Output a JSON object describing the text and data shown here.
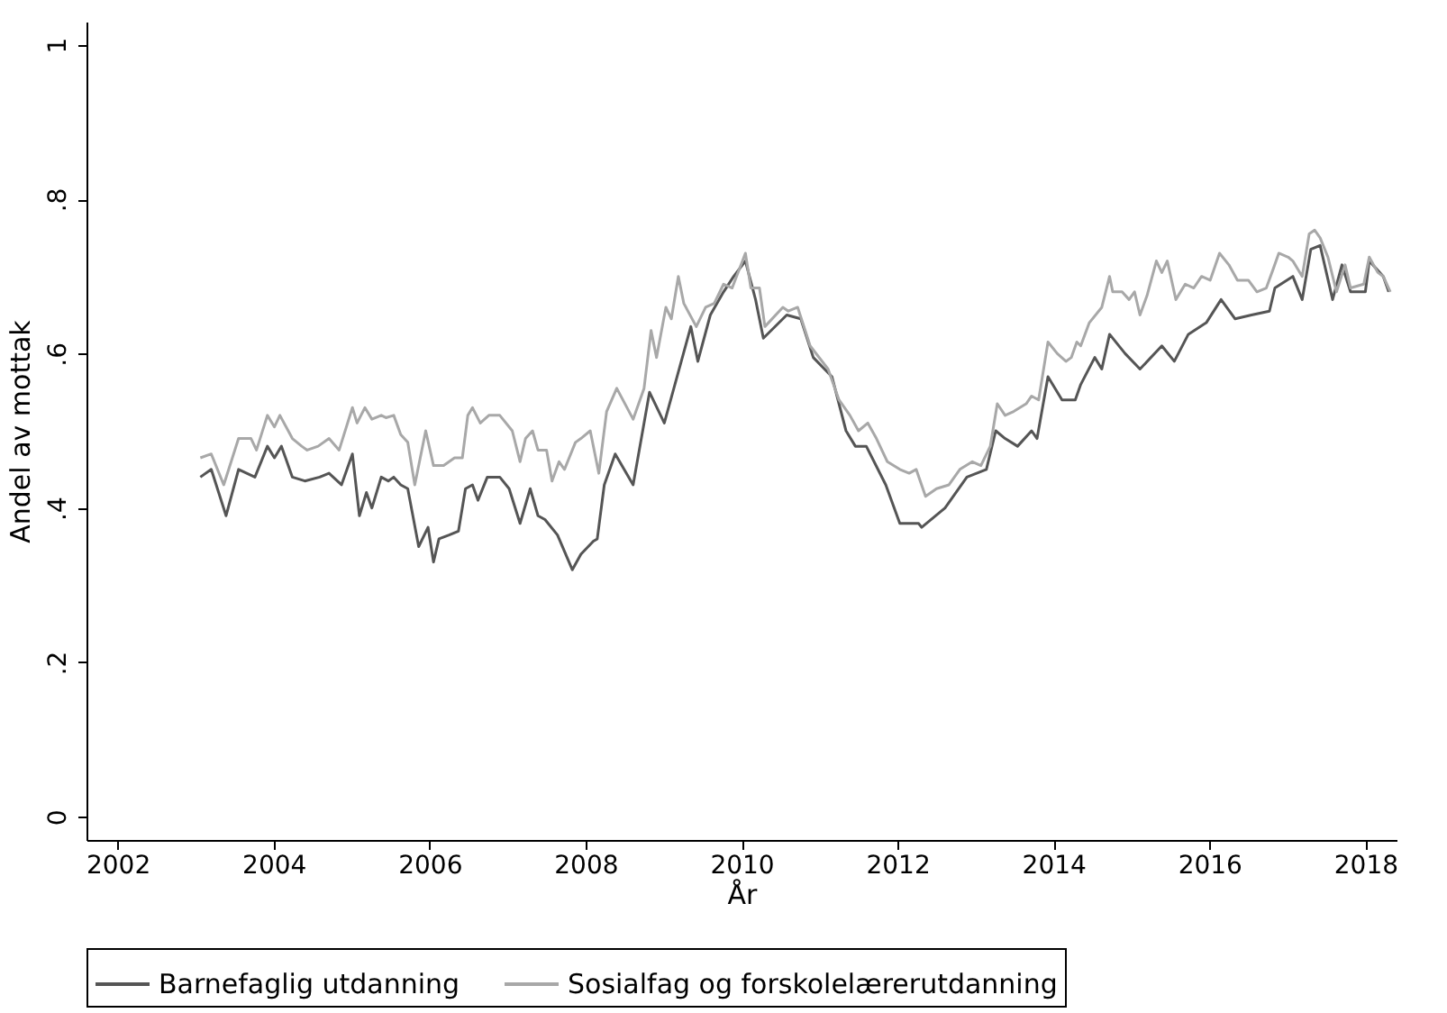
{
  "chart_data": {
    "type": "line",
    "xlabel": "År",
    "ylabel": "Andel av mottak",
    "xlim": [
      2001.6,
      2018.4
    ],
    "xticks": [
      2002,
      2004,
      2006,
      2008,
      2010,
      2012,
      2014,
      2016,
      2018
    ],
    "ylim": [
      -0.03,
      1.03
    ],
    "yticks": [
      0,
      {
        "value": 0.2,
        "label": ".2"
      },
      {
        "value": 0.4,
        "label": ".4"
      },
      {
        "value": 0.6,
        "label": ".6"
      },
      {
        "value": 0.8,
        "label": ".8"
      },
      1
    ],
    "grid": false,
    "legend": "bottom",
    "marker": "none",
    "line_style": "solid",
    "series": [
      {
        "name": "Barnefaglig utdanning",
        "color": "#555555",
        "x": [
          2003.06,
          2003.2,
          2003.39,
          2003.55,
          2003.76,
          2003.92,
          2004.01,
          2004.1,
          2004.24,
          2004.4,
          2004.59,
          2004.71,
          2004.87,
          2005.01,
          2005.1,
          2005.19,
          2005.26,
          2005.38,
          2005.47,
          2005.54,
          2005.63,
          2005.72,
          2005.86,
          2005.98,
          2006.05,
          2006.12,
          2006.25,
          2006.37,
          2006.46,
          2006.55,
          2006.62,
          2006.74,
          2006.9,
          2007.02,
          2007.16,
          2007.29,
          2007.39,
          2007.48,
          2007.64,
          2007.83,
          2007.94,
          2008.1,
          2008.15,
          2008.24,
          2008.38,
          2008.61,
          2008.82,
          2009.01,
          2009.35,
          2009.44,
          2009.6,
          2009.77,
          2009.9,
          2010.05,
          2010.18,
          2010.28,
          2010.58,
          2010.76,
          2010.92,
          2011.16,
          2011.34,
          2011.46,
          2011.6,
          2011.85,
          2012.03,
          2012.27,
          2012.31,
          2012.61,
          2012.89,
          2013.14,
          2013.26,
          2013.38,
          2013.54,
          2013.72,
          2013.79,
          2013.93,
          2014.11,
          2014.28,
          2014.35,
          2014.53,
          2014.62,
          2014.72,
          2014.92,
          2015.11,
          2015.39,
          2015.55,
          2015.73,
          2015.96,
          2016.15,
          2016.33,
          2016.54,
          2016.77,
          2016.84,
          2017.07,
          2017.19,
          2017.3,
          2017.42,
          2017.58,
          2017.7,
          2017.81,
          2018.0,
          2018.05,
          2018.23,
          2018.3
        ],
        "values": [
          0.44,
          0.45,
          0.39,
          0.45,
          0.44,
          0.48,
          0.465,
          0.48,
          0.44,
          0.435,
          0.44,
          0.445,
          0.43,
          0.47,
          0.39,
          0.42,
          0.4,
          0.44,
          0.435,
          0.44,
          0.43,
          0.425,
          0.35,
          0.375,
          0.33,
          0.36,
          0.365,
          0.37,
          0.425,
          0.43,
          0.41,
          0.44,
          0.44,
          0.425,
          0.38,
          0.425,
          0.39,
          0.385,
          0.365,
          0.32,
          0.34,
          0.357,
          0.36,
          0.43,
          0.47,
          0.43,
          0.55,
          0.51,
          0.635,
          0.59,
          0.65,
          0.68,
          0.7,
          0.72,
          0.67,
          0.62,
          0.65,
          0.645,
          0.595,
          0.57,
          0.5,
          0.48,
          0.48,
          0.43,
          0.38,
          0.38,
          0.375,
          0.4,
          0.44,
          0.45,
          0.5,
          0.49,
          0.48,
          0.5,
          0.49,
          0.57,
          0.54,
          0.54,
          0.56,
          0.595,
          0.58,
          0.625,
          0.6,
          0.58,
          0.61,
          0.59,
          0.625,
          0.64,
          0.67,
          0.645,
          0.65,
          0.655,
          0.685,
          0.7,
          0.67,
          0.735,
          0.74,
          0.67,
          0.715,
          0.68,
          0.68,
          0.72,
          0.7,
          0.68
        ]
      },
      {
        "name": "Sosialfag og forskolelærerutdanning",
        "color": "#a8a8a8",
        "x": [
          2003.06,
          2003.2,
          2003.36,
          2003.55,
          2003.71,
          2003.78,
          2003.92,
          2004.01,
          2004.08,
          2004.24,
          2004.36,
          2004.43,
          2004.57,
          2004.71,
          2004.84,
          2005.01,
          2005.07,
          2005.17,
          2005.26,
          2005.38,
          2005.44,
          2005.54,
          2005.63,
          2005.72,
          2005.81,
          2005.95,
          2006.05,
          2006.18,
          2006.32,
          2006.42,
          2006.49,
          2006.55,
          2006.65,
          2006.76,
          2006.9,
          2007.06,
          2007.16,
          2007.23,
          2007.32,
          2007.39,
          2007.5,
          2007.57,
          2007.66,
          2007.73,
          2007.87,
          2007.94,
          2008.06,
          2008.17,
          2008.27,
          2008.4,
          2008.61,
          2008.75,
          2008.84,
          2008.91,
          2009.03,
          2009.1,
          2009.19,
          2009.26,
          2009.42,
          2009.54,
          2009.65,
          2009.77,
          2009.88,
          2010.05,
          2010.12,
          2010.23,
          2010.3,
          2010.53,
          2010.6,
          2010.72,
          2010.88,
          2011.11,
          2011.25,
          2011.39,
          2011.5,
          2011.62,
          2011.73,
          2011.87,
          2012.03,
          2012.15,
          2012.24,
          2012.36,
          2012.5,
          2012.66,
          2012.8,
          2012.96,
          2013.07,
          2013.19,
          2013.28,
          2013.38,
          2013.49,
          2013.65,
          2013.72,
          2013.81,
          2013.93,
          2014.05,
          2014.16,
          2014.23,
          2014.3,
          2014.35,
          2014.46,
          2014.62,
          2014.72,
          2014.76,
          2014.88,
          2014.97,
          2015.04,
          2015.11,
          2015.2,
          2015.32,
          2015.39,
          2015.46,
          2015.57,
          2015.69,
          2015.8,
          2015.9,
          2016.01,
          2016.13,
          2016.25,
          2016.36,
          2016.5,
          2016.61,
          2016.73,
          2016.82,
          2016.89,
          2017.01,
          2017.07,
          2017.19,
          2017.28,
          2017.35,
          2017.42,
          2017.52,
          2017.63,
          2017.74,
          2017.81,
          2017.98,
          2018.05,
          2018.16,
          2018.23,
          2018.32
        ],
        "values": [
          0.465,
          0.47,
          0.43,
          0.49,
          0.49,
          0.475,
          0.52,
          0.505,
          0.52,
          0.49,
          0.48,
          0.475,
          0.48,
          0.49,
          0.475,
          0.53,
          0.51,
          0.53,
          0.515,
          0.52,
          0.517,
          0.52,
          0.495,
          0.485,
          0.43,
          0.5,
          0.455,
          0.455,
          0.465,
          0.465,
          0.52,
          0.53,
          0.51,
          0.52,
          0.52,
          0.5,
          0.46,
          0.49,
          0.5,
          0.475,
          0.475,
          0.435,
          0.46,
          0.45,
          0.485,
          0.49,
          0.5,
          0.445,
          0.525,
          0.555,
          0.515,
          0.555,
          0.63,
          0.595,
          0.66,
          0.645,
          0.7,
          0.665,
          0.635,
          0.66,
          0.665,
          0.69,
          0.685,
          0.73,
          0.685,
          0.685,
          0.635,
          0.66,
          0.655,
          0.66,
          0.61,
          0.58,
          0.54,
          0.52,
          0.5,
          0.51,
          0.49,
          0.46,
          0.45,
          0.445,
          0.45,
          0.415,
          0.425,
          0.43,
          0.45,
          0.46,
          0.455,
          0.48,
          0.535,
          0.52,
          0.525,
          0.535,
          0.545,
          0.54,
          0.615,
          0.6,
          0.59,
          0.595,
          0.615,
          0.61,
          0.64,
          0.66,
          0.7,
          0.68,
          0.68,
          0.67,
          0.68,
          0.65,
          0.675,
          0.72,
          0.705,
          0.72,
          0.67,
          0.69,
          0.685,
          0.7,
          0.695,
          0.73,
          0.715,
          0.695,
          0.695,
          0.68,
          0.685,
          0.71,
          0.73,
          0.725,
          0.72,
          0.7,
          0.755,
          0.76,
          0.75,
          0.725,
          0.68,
          0.715,
          0.685,
          0.69,
          0.725,
          0.705,
          0.7,
          0.68
        ]
      }
    ]
  }
}
